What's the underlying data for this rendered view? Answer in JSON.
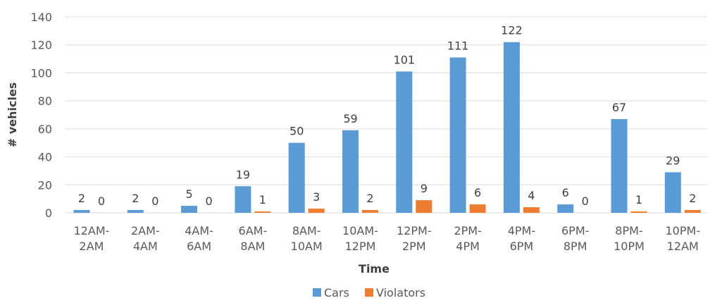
{
  "chart_data": {
    "type": "bar",
    "categories": [
      [
        "12AM-",
        "2AM"
      ],
      [
        "2AM-",
        "4AM"
      ],
      [
        "4AM-",
        "6AM"
      ],
      [
        "6AM-",
        "8AM"
      ],
      [
        "8AM-",
        "10AM"
      ],
      [
        "10AM-",
        "12PM"
      ],
      [
        "12PM-",
        "2PM"
      ],
      [
        "2PM-",
        "4PM"
      ],
      [
        "4PM-",
        "6PM"
      ],
      [
        "6PM-",
        "8PM"
      ],
      [
        "8PM-",
        "10PM"
      ],
      [
        "10PM-",
        "12AM"
      ]
    ],
    "series": [
      {
        "name": "Cars",
        "color": "#5b9bd5",
        "values": [
          2,
          2,
          5,
          19,
          50,
          59,
          101,
          111,
          122,
          6,
          67,
          29
        ]
      },
      {
        "name": "Violators",
        "color": "#ed7d31",
        "values": [
          0,
          0,
          0,
          1,
          3,
          2,
          9,
          6,
          4,
          0,
          1,
          2
        ]
      }
    ],
    "xlabel": "Time",
    "ylabel": "# vehicles",
    "ylim": [
      0,
      140
    ],
    "yticks": [
      0,
      20,
      40,
      60,
      80,
      100,
      120,
      140
    ],
    "grid": true,
    "legend_position": "bottom",
    "gridline_color": "#d9d9d9"
  }
}
